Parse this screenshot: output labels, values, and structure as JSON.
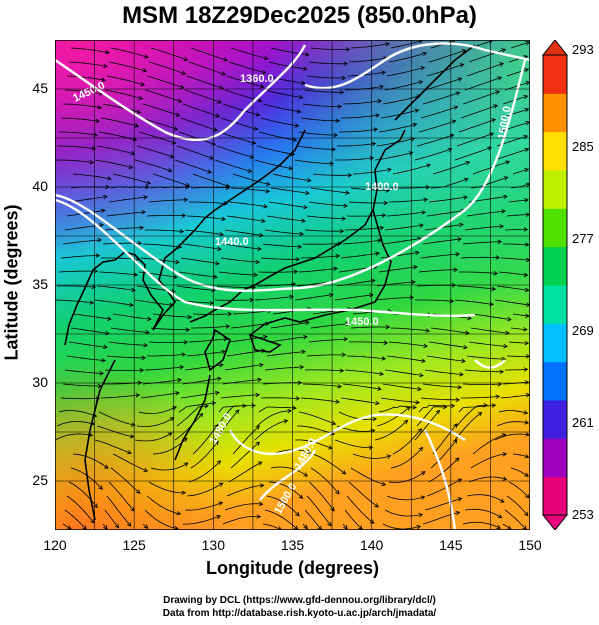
{
  "title": "MSM 18Z29Dec2025 (850.0hPa)",
  "map": {
    "x_axis": {
      "label": "Longitude (degrees)",
      "range": [
        120,
        150
      ],
      "ticks": [
        "120",
        "125",
        "130",
        "135",
        "140",
        "145",
        "150"
      ]
    },
    "y_axis": {
      "label": "Latitude  (degrees)",
      "range": [
        22.5,
        47.5
      ],
      "ticks": [
        "25",
        "30",
        "35",
        "40",
        "45"
      ]
    },
    "grid": true,
    "shading": "temperature",
    "overlay": [
      "streamlines",
      "geopotential height contours",
      "coastlines"
    ],
    "contour_labels": [
      "1360.0",
      "1400.0",
      "1440.0",
      "1450.0",
      "1450.0",
      "1480.0",
      "1480.0",
      "1500.0",
      "1500.0"
    ]
  },
  "colorbar": {
    "range": [
      253,
      293
    ],
    "ticks": [
      "293",
      "285",
      "277",
      "269",
      "261",
      "253"
    ],
    "colors": [
      "#e8007a",
      "#a000c0",
      "#4020e0",
      "#0070ff",
      "#00c0ff",
      "#00e0a0",
      "#00d050",
      "#50e000",
      "#c0f000",
      "#ffe000",
      "#ff9000",
      "#f03010"
    ]
  },
  "credits": {
    "line1": "Drawing by DCL (https://www.gfd-dennou.org/library/dcl/)",
    "line2": "Data from http://database.rish.kyoto-u.ac.jp/arch/jmadata/"
  }
}
